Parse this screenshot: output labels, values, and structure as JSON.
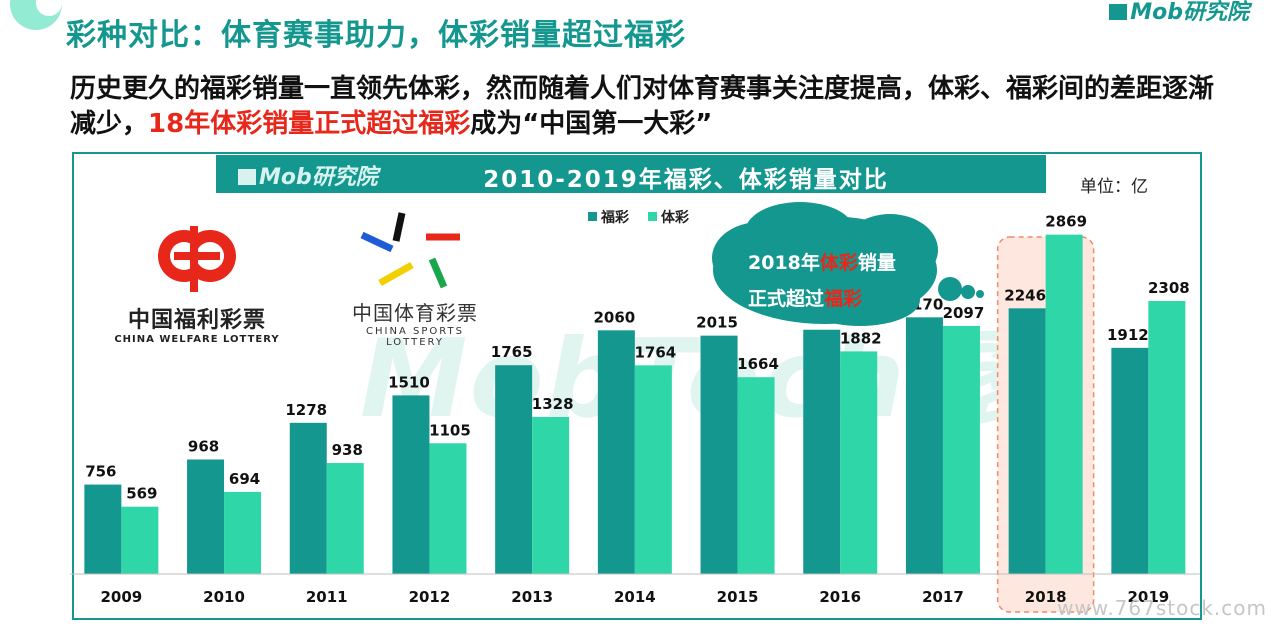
{
  "page": {
    "title": "彩种对比：体育赛事助力，体彩销量超过福彩",
    "brand": "Mob研究院",
    "subtitle_part1": "历史更久的福彩销量一直领先体彩，然而随着人们对体育赛事关注度提高，体彩、福彩间的差距逐渐减少，",
    "subtitle_highlight": "18年体彩销量正式超过福彩",
    "subtitle_part2": "成为“中国第一大彩”",
    "site_watermark": "www.767stock.com"
  },
  "chart_header": {
    "logo": "Mob研究院",
    "title": "2010-2019年福彩、体彩销量对比"
  },
  "unit": "单位：亿",
  "logos": {
    "welfare_cn": "中国福利彩票",
    "welfare_en": "CHINA WELFARE LOTTERY",
    "sports_cn": "中国体育彩票",
    "sports_en": "CHINA SPORTS LOTTERY"
  },
  "bg_watermark": "MobTech 袤",
  "callout": {
    "line1_a": "2018年",
    "line1_hl": "体彩",
    "line1_b": "销量",
    "line2_a": "正式超过",
    "line2_hl": "福彩"
  },
  "colors": {
    "welfare": "#14978f",
    "sports": "#2fd6a8",
    "accent": "#e8271b",
    "title": "#14978f"
  },
  "chart_data": {
    "type": "bar",
    "categories": [
      "2009",
      "2010",
      "2011",
      "2012",
      "2013",
      "2014",
      "2015",
      "2016",
      "2017",
      "2018",
      "2019"
    ],
    "series": [
      {
        "name": "福彩",
        "values": [
          756,
          968,
          1278,
          1510,
          1765,
          2060,
          2015,
          2065,
          2170,
          2246,
          1912
        ]
      },
      {
        "name": "体彩",
        "values": [
          569,
          694,
          938,
          1105,
          1328,
          1764,
          1664,
          1882,
          2097,
          2869,
          2308
        ]
      }
    ],
    "ylim": [
      0,
      3500
    ],
    "highlight_category": "2018",
    "legend_position": "top-center",
    "grid": false
  }
}
